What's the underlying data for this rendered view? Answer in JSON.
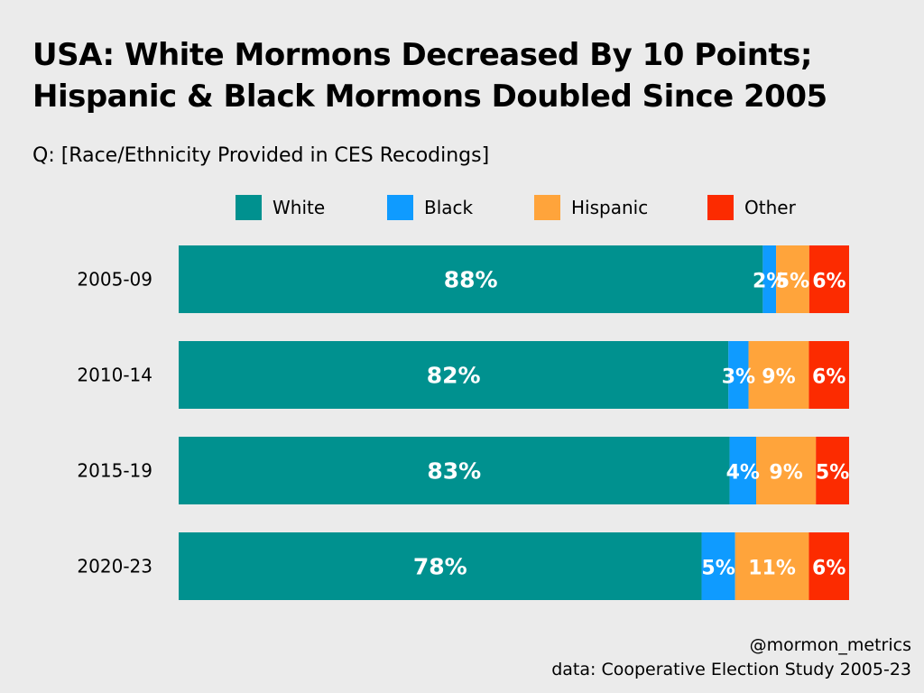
{
  "chart_data": {
    "type": "bar",
    "orientation": "horizontal",
    "stacked": true,
    "title_lines": [
      "USA: White Mormons Decreased By 10 Points;",
      "Hispanic & Black Mormons Doubled Since 2005"
    ],
    "subtitle": "Q: [Race/Ethnicity Provided in CES Recodings]",
    "categories": [
      "2005-09",
      "2010-14",
      "2015-19",
      "2020-23"
    ],
    "series": [
      {
        "name": "White",
        "color": "#00918f",
        "values": [
          88,
          82,
          83,
          78
        ],
        "labels": [
          "88%",
          "82%",
          "83%",
          "78%"
        ]
      },
      {
        "name": "Black",
        "color": "#0f9bff",
        "values": [
          2,
          3,
          4,
          5
        ],
        "labels": [
          "2%",
          "3%",
          "4%",
          "5%"
        ]
      },
      {
        "name": "Hispanic",
        "color": "#ffa43b",
        "values": [
          5,
          9,
          9,
          11
        ],
        "labels": [
          "5%",
          "9%",
          "9%",
          "11%"
        ]
      },
      {
        "name": "Other",
        "color": "#fc2b00",
        "values": [
          6,
          6,
          5,
          6
        ],
        "labels": [
          "6%",
          "6%",
          "5%",
          "6%"
        ]
      }
    ],
    "legend_position": "top",
    "grid": false
  },
  "footer": {
    "handle": "@mormon_metrics",
    "source": "data: Cooperative Election Study 2005-23"
  }
}
